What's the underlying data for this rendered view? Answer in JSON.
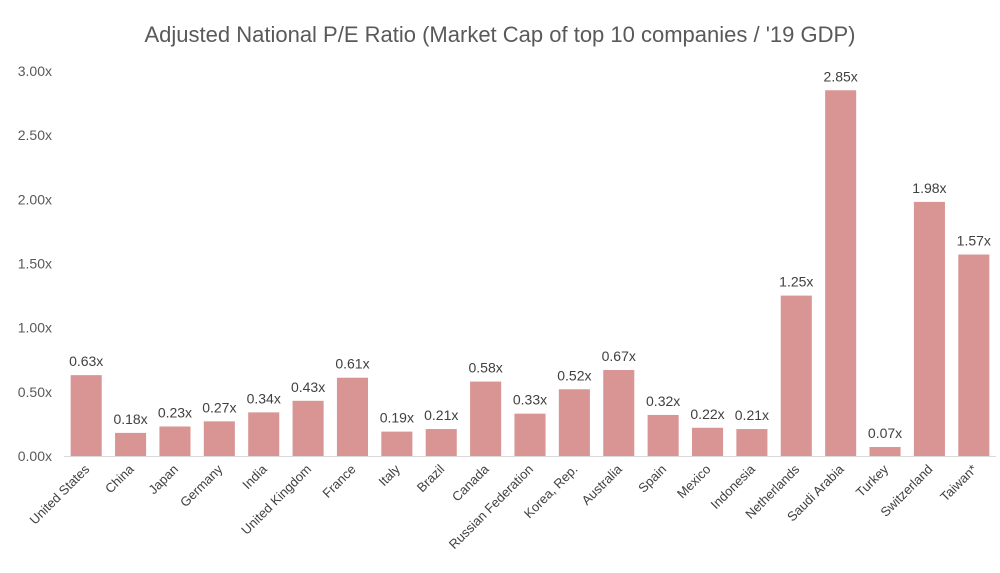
{
  "chart_data": {
    "type": "bar",
    "title": "Adjusted National P/E Ratio (Market Cap of top 10 companies / '19 GDP)",
    "xlabel": "",
    "ylabel": "",
    "ylim": [
      0,
      3.0
    ],
    "yticks": [
      "0.00x",
      "0.50x",
      "1.00x",
      "1.50x",
      "2.00x",
      "2.50x",
      "3.00x"
    ],
    "grid": false,
    "legend": "none",
    "bar_color": "#d99594",
    "categories": [
      "United States",
      "China",
      "Japan",
      "Germany",
      "India",
      "United Kingdom",
      "France",
      "Italy",
      "Brazil",
      "Canada",
      "Russian Federation",
      "Korea, Rep.",
      "Australia",
      "Spain",
      "Mexico",
      "Indonesia",
      "Netherlands",
      "Saudi Arabia",
      "Turkey",
      "Switzerland",
      "Taiwan*"
    ],
    "values": [
      0.63,
      0.18,
      0.23,
      0.27,
      0.34,
      0.43,
      0.61,
      0.19,
      0.21,
      0.58,
      0.33,
      0.52,
      0.67,
      0.32,
      0.22,
      0.21,
      1.25,
      2.85,
      0.07,
      1.98,
      1.57
    ],
    "data_labels": [
      "0.63x",
      "0.18x",
      "0.23x",
      "0.27x",
      "0.34x",
      "0.43x",
      "0.61x",
      "0.19x",
      "0.21x",
      "0.58x",
      "0.33x",
      "0.52x",
      "0.67x",
      "0.32x",
      "0.22x",
      "0.21x",
      "1.25x",
      "2.85x",
      "0.07x",
      "1.98x",
      "1.57x"
    ]
  }
}
